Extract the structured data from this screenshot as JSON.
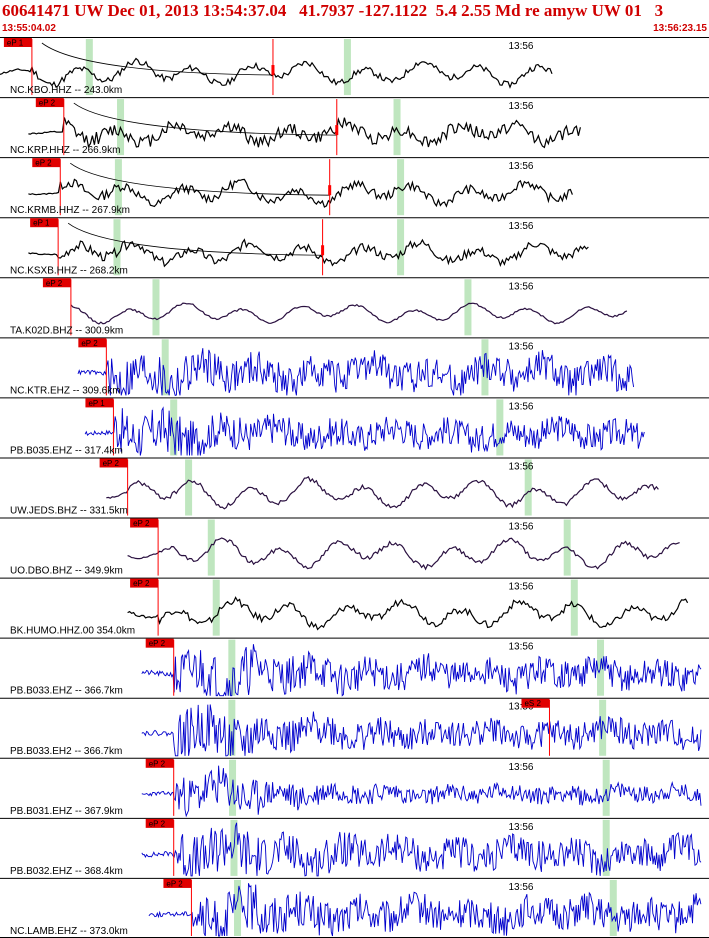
{
  "header": {
    "title": "60641471 UW Dec 01, 2013 13:54:37.04   41.7937 -127.1122  5.4 2.55 Md re amyw UW 01   3",
    "start_time": "13:55:04.02",
    "end_time": "13:56:23.15"
  },
  "chart_data": {
    "type": "line",
    "title": "60641471 UW Dec 01, 2013 13:54:37.04   41.7937 -127.1122  5.4 2.55 Md re amyw UW 01   3",
    "x_start": "13:55:04.02",
    "x_end": "13:56:23.15",
    "time_marks": [
      {
        "label": "13:56",
        "frac": 0.72
      }
    ],
    "colors": {
      "broadband": "#000000",
      "short_period": "#0000cc",
      "pick": "#ff0000",
      "pick_bg": "#e00000",
      "window": "#bfe6bf"
    },
    "series": [
      {
        "name": "NC.KBO.HHZ -- 243.0km",
        "color": "#000000",
        "pick_label": "eP 1",
        "pick_frac": 0.045,
        "window_frac": [
          0.126,
          0.49
        ],
        "amp": 0.55,
        "hf": 0.25,
        "seed": 11,
        "start": 0.0,
        "end": 0.78,
        "decay": 0.1,
        "extra_pick": 0.385,
        "curve": true
      },
      {
        "name": "NC.KRP.HHZ -- 266.9km",
        "color": "#000000",
        "pick_label": "eP 2",
        "pick_frac": 0.09,
        "window_frac": [
          0.17,
          0.56
        ],
        "amp": 0.55,
        "hf": 0.5,
        "seed": 12,
        "start": 0.04,
        "end": 0.82,
        "decay": 0.1,
        "extra_pick": 0.475,
        "curve": true
      },
      {
        "name": "NC.KRMB.HHZ -- 267.9km",
        "color": "#000000",
        "pick_label": "eP 2",
        "pick_frac": 0.085,
        "window_frac": [
          0.167,
          0.565
        ],
        "amp": 0.55,
        "hf": 0.35,
        "seed": 13,
        "start": 0.04,
        "end": 0.81,
        "decay": 0.1,
        "extra_pick": 0.465,
        "curve": true
      },
      {
        "name": "NC.KSXB.HHZ -- 268.2km",
        "color": "#000000",
        "pick_label": "eP 1",
        "pick_frac": 0.082,
        "window_frac": [
          0.165,
          0.565
        ],
        "amp": 0.55,
        "hf": 0.35,
        "seed": 14,
        "start": 0.04,
        "end": 0.83,
        "decay": 0.1,
        "extra_pick": 0.455,
        "curve": true
      },
      {
        "name": "TA.K02D.BHZ -- 300.9km",
        "color": "#2a1040",
        "pick_label": "eP 2",
        "pick_frac": 0.1,
        "window_frac": [
          0.22,
          0.66
        ],
        "amp": 0.4,
        "hf": 0.1,
        "seed": 15,
        "start": 0.1,
        "end": 0.885,
        "decay": 0.05,
        "extra_pick": null,
        "curve": false
      },
      {
        "name": "NC.KTR.EHZ -- 309.6km",
        "color": "#0000cc",
        "pick_label": "eP 2",
        "pick_frac": 0.15,
        "window_frac": [
          0.233,
          0.684
        ],
        "amp": 0.85,
        "hf": 0.9,
        "seed": 16,
        "start": 0.11,
        "end": 0.895,
        "decay": 0.15,
        "extra_pick": null,
        "curve": false
      },
      {
        "name": "PB.B035.EHZ -- 317.4km",
        "color": "#0000cc",
        "pick_label": "eP 1",
        "pick_frac": 0.16,
        "window_frac": [
          0.245,
          0.705
        ],
        "amp": 0.8,
        "hf": 1.0,
        "seed": 17,
        "start": 0.12,
        "end": 0.91,
        "decay": 0.3,
        "extra_pick": null,
        "curve": false
      },
      {
        "name": "UW.JEDS.BHZ -- 331.5km",
        "color": "#2a1040",
        "pick_label": "eP 2",
        "pick_frac": 0.18,
        "window_frac": [
          0.266,
          0.745
        ],
        "amp": 0.6,
        "hf": 0.15,
        "seed": 18,
        "start": 0.15,
        "end": 0.93,
        "decay": 0.05,
        "extra_pick": null,
        "curve": false
      },
      {
        "name": "UO.DBO.BHZ -- 349.9km",
        "color": "#2a1040",
        "pick_label": "eP 2",
        "pick_frac": 0.223,
        "window_frac": [
          0.298,
          0.8
        ],
        "amp": 0.6,
        "hf": 0.15,
        "seed": 19,
        "start": 0.18,
        "end": 0.96,
        "decay": 0.05,
        "extra_pick": null,
        "curve": false
      },
      {
        "name": "BK.HUMO.HHZ.00 354.0km",
        "color": "#000000",
        "pick_label": "eP 2",
        "pick_frac": 0.223,
        "window_frac": [
          0.305,
          0.81
        ],
        "amp": 0.6,
        "hf": 0.25,
        "seed": 20,
        "start": 0.18,
        "end": 0.97,
        "decay": 0.05,
        "extra_pick": null,
        "curve": false
      },
      {
        "name": "PB.B033.EHZ -- 366.7km",
        "color": "#0000cc",
        "pick_label": "eP 2",
        "pick_frac": 0.245,
        "window_frac": [
          0.327,
          0.847
        ],
        "amp": 0.9,
        "hf": 1.0,
        "seed": 21,
        "start": 0.2,
        "end": 0.99,
        "decay": 0.35,
        "extra_pick": null,
        "curve": false
      },
      {
        "name": "PB.B033.EH2 -- 366.7km",
        "color": "#0000cc",
        "pick_label": "eS 2",
        "pick_frac": 0.775,
        "window_frac": [
          0.327,
          0.85
        ],
        "amp": 0.9,
        "hf": 1.0,
        "seed": 22,
        "start": 0.2,
        "end": 0.99,
        "decay": 0.4,
        "extra_pick": null,
        "curve": false
      },
      {
        "name": "PB.B031.EHZ -- 367.9km",
        "color": "#0000cc",
        "pick_label": "eP 2",
        "pick_frac": 0.245,
        "window_frac": [
          0.328,
          0.855
        ],
        "amp": 0.7,
        "hf": 1.0,
        "seed": 23,
        "start": 0.2,
        "end": 0.99,
        "decay": 0.5,
        "extra_pick": null,
        "curve": false
      },
      {
        "name": "PB.B032.EHZ -- 368.4km",
        "color": "#0000cc",
        "pick_label": "eP 2",
        "pick_frac": 0.245,
        "window_frac": [
          0.33,
          0.855
        ],
        "amp": 0.9,
        "hf": 1.0,
        "seed": 24,
        "start": 0.2,
        "end": 0.99,
        "decay": 0.3,
        "extra_pick": null,
        "curve": false
      },
      {
        "name": "NC.LAMB.EHZ -- 373.0km",
        "color": "#0000cc",
        "pick_label": "eP 2",
        "pick_frac": 0.27,
        "window_frac": [
          0.335,
          0.865
        ],
        "amp": 0.85,
        "hf": 1.0,
        "seed": 25,
        "start": 0.21,
        "end": 0.99,
        "decay": 0.25,
        "extra_pick": null,
        "curve": false
      }
    ]
  }
}
